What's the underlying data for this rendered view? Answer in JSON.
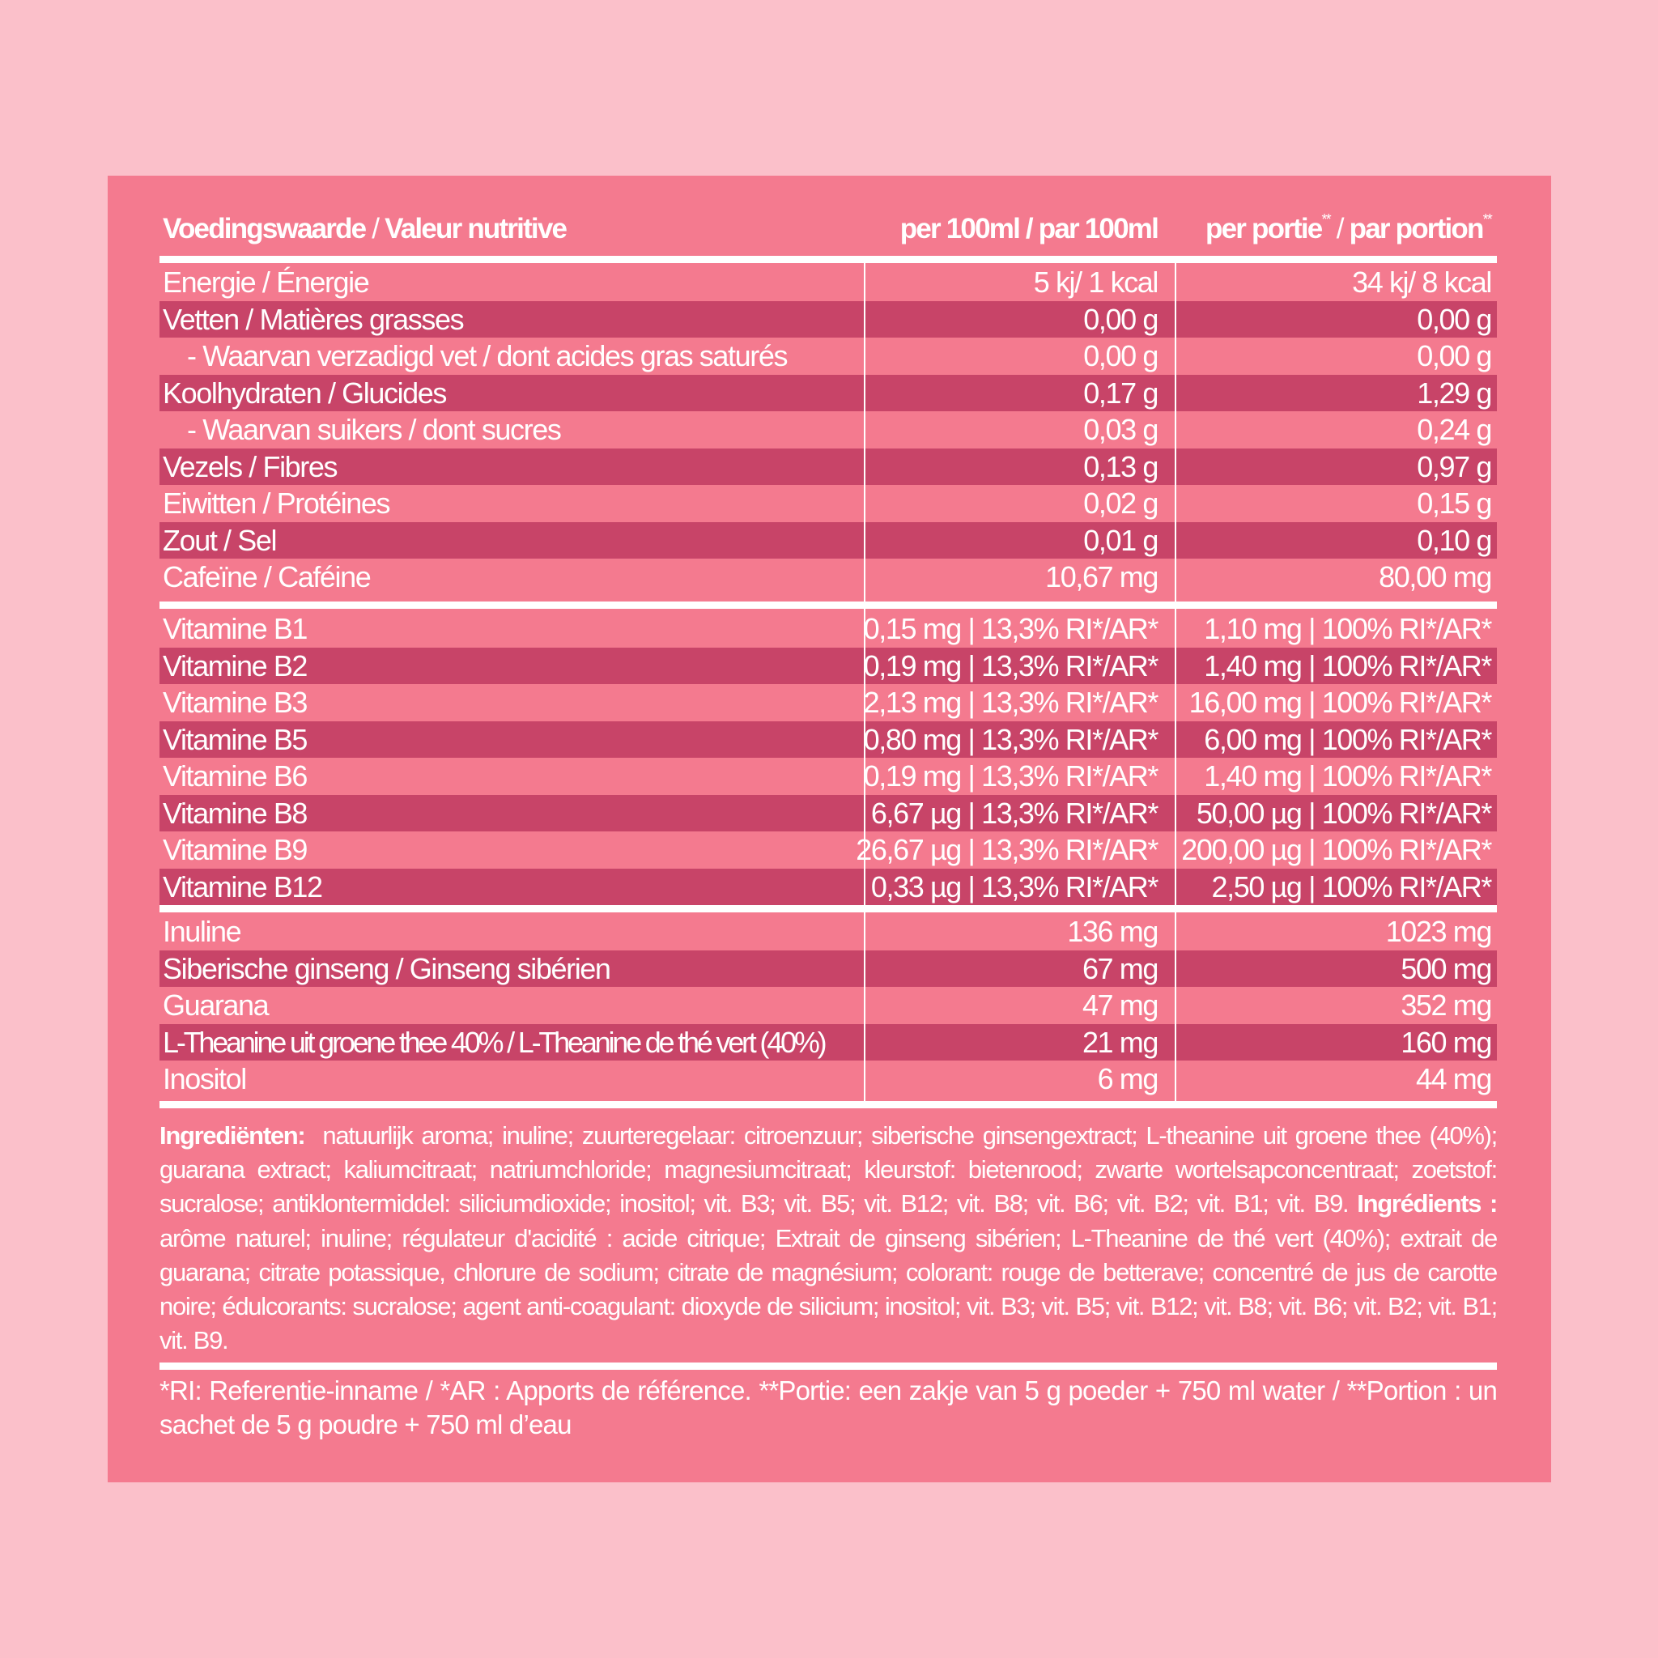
{
  "colors": {
    "background": "#FBC0CA",
    "panel": "#F47A8F",
    "dark_row": "#C84468",
    "text": "#FFFFFF"
  },
  "header": {
    "col1_bold1": "Voedingswaarde",
    "col1_sep": " / ",
    "col1_bold2": "Valeur nutritive",
    "col2": "per 100ml / par 100ml",
    "col3_a": "per portie",
    "col3_a_sup": "**",
    "col3_sep": " / ",
    "col3_b": "par portion",
    "col3_b_sup": "**"
  },
  "nutrients": [
    {
      "label": "Energie / Énergie",
      "per100": "5 kj/ 1 kcal",
      "portion": "34 kj/ 8 kcal"
    },
    {
      "label": "Vetten / Matières grasses",
      "per100": "0,00 g",
      "portion": "0,00 g"
    },
    {
      "label": "- Waarvan verzadigd vet / dont acides gras saturés",
      "per100": "0,00 g",
      "portion": "0,00 g",
      "indent": true
    },
    {
      "label": "Koolhydraten / Glucides",
      "per100": "0,17 g",
      "portion": "1,29 g"
    },
    {
      "label": "- Waarvan suikers / dont sucres",
      "per100": "0,03 g",
      "portion": "0,24 g",
      "indent": true
    },
    {
      "label": "Vezels / Fibres",
      "per100": "0,13 g",
      "portion": "0,97 g"
    },
    {
      "label": "Eiwitten / Protéines",
      "per100": "0,02 g",
      "portion": "0,15 g"
    },
    {
      "label": "Zout / Sel",
      "per100": "0,01 g",
      "portion": "0,10 g"
    },
    {
      "label": "Cafeïne / Caféine",
      "per100": "10,67 mg",
      "portion": "80,00 mg"
    }
  ],
  "vitamins": [
    {
      "label": "Vitamine B1",
      "per100": "0,15 mg",
      "per100_ri": "13,3% RI*/AR*",
      "portion": "1,10 mg",
      "portion_ri": "100% RI*/AR*"
    },
    {
      "label": "Vitamine B2",
      "per100": "0,19 mg",
      "per100_ri": "13,3% RI*/AR*",
      "portion": "1,40 mg",
      "portion_ri": "100% RI*/AR*"
    },
    {
      "label": "Vitamine B3",
      "per100": "2,13 mg",
      "per100_ri": "13,3% RI*/AR*",
      "portion": "16,00 mg",
      "portion_ri": "100% RI*/AR*"
    },
    {
      "label": "Vitamine B5",
      "per100": "0,80 mg",
      "per100_ri": "13,3% RI*/AR*",
      "portion": "6,00 mg",
      "portion_ri": "100% RI*/AR*"
    },
    {
      "label": "Vitamine B6",
      "per100": "0,19 mg",
      "per100_ri": "13,3% RI*/AR*",
      "portion": "1,40 mg",
      "portion_ri": "100% RI*/AR*"
    },
    {
      "label": "Vitamine B8",
      "per100": "6,67 µg",
      "per100_ri": "13,3% RI*/AR*",
      "portion": "50,00 µg",
      "portion_ri": "100% RI*/AR*"
    },
    {
      "label": "Vitamine B9",
      "per100": "26,67 µg",
      "per100_ri": "13,3% RI*/AR*",
      "portion": "200,00 µg",
      "portion_ri": "100% RI*/AR*"
    },
    {
      "label": "Vitamine B12",
      "per100": "0,33 µg",
      "per100_ri": "13,3% RI*/AR*",
      "portion": "2,50 µg",
      "portion_ri": "100% RI*/AR*"
    }
  ],
  "extras": [
    {
      "label": "Inuline",
      "per100": "136 mg",
      "portion": "1023 mg"
    },
    {
      "label": "Siberische ginseng / Ginseng sibérien",
      "per100": "67 mg",
      "portion": "500 mg"
    },
    {
      "label": "Guarana",
      "per100": "47 mg",
      "portion": "352 mg"
    },
    {
      "label": "L-Theanine uit groene thee 40% / L-Theanine de thé vert (40%)",
      "per100": "21 mg",
      "portion": "160 mg",
      "tight": true
    },
    {
      "label": "Inositol",
      "per100": "6 mg",
      "portion": "44 mg"
    }
  ],
  "ingredients": {
    "nl_label": "Ingrediënten:",
    "nl_text": "natuurlijk aroma; inuline; zuurteregelaar: citroenzuur; siberische ginsengextract; L-theanine uit groene thee (40%); guarana extract; kaliumcitraat; natriumchloride; magnesiumcitraat; kleurstof: bietenrood; zwarte wortelsapconcentraat; zoetstof: sucralose; antiklontermiddel: siliciumdioxide; inositol; vit. B3; vit. B5; vit. B12; vit. B8; vit. B6; vit. B2; vit. B1; vit. B9.",
    "fr_label": "Ingrédients :",
    "fr_text": "arôme naturel; inuline; régulateur d'acidité : acide citrique; Extrait de ginseng sibérien; L-Theanine de thé vert (40%); extrait de guarana; citrate potassique, chlorure de sodium; citrate de magnésium;  colorant: rouge de betterave; concentré de jus de carotte noire; édulcorants: sucralose; agent anti-coagulant: dioxyde de silicium; inositol; vit. B3; vit. B5; vit. B12; vit. B8; vit. B6; vit. B2; vit. B1; vit. B9."
  },
  "footnote": "*RI: Referentie-inname / *AR : Apports de référence. **Portie: een zakje van 5 g poeder + 750 ml water / **Portion : un sachet de 5 g poudre + 750 ml d’eau"
}
